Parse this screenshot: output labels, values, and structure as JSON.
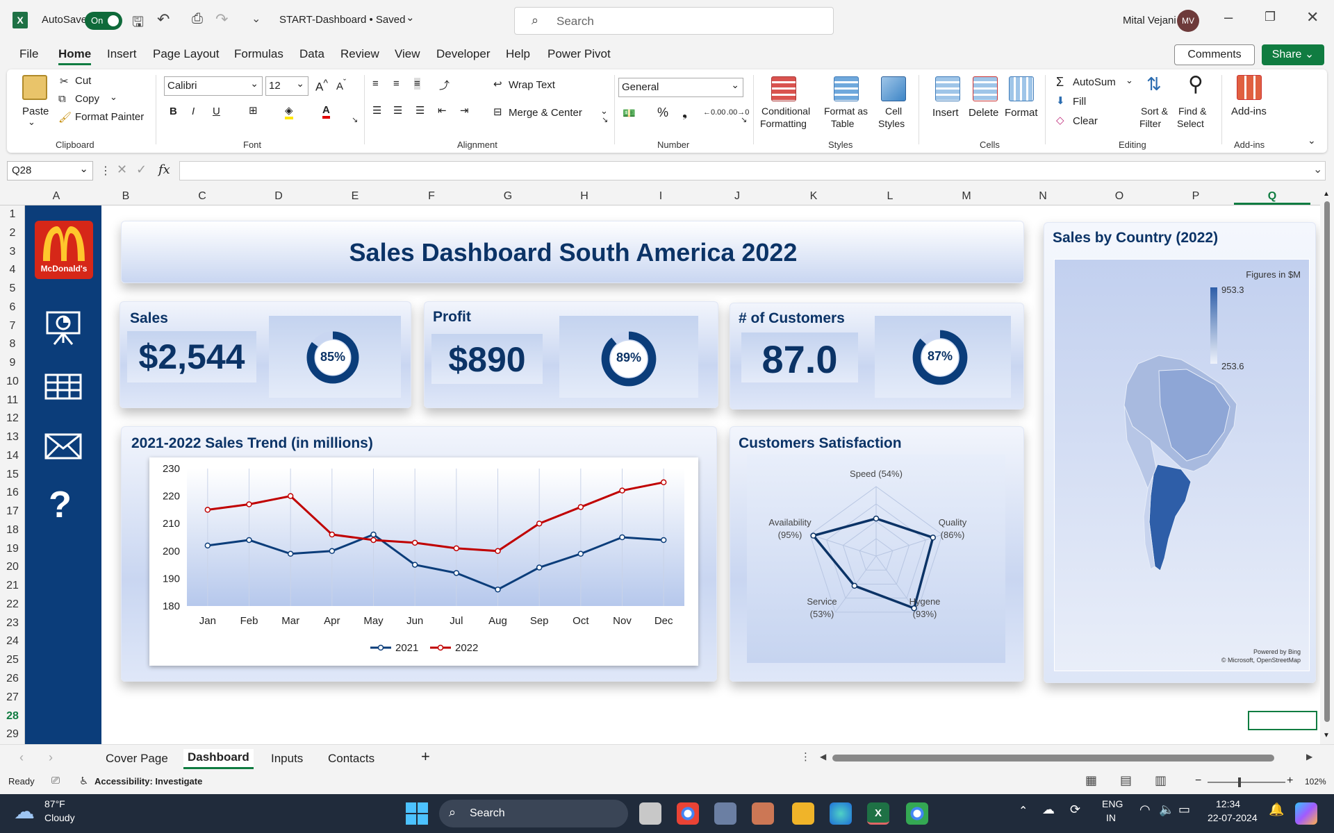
{
  "titlebar": {
    "autosave_label": "AutoSave",
    "autosave_state": "On",
    "doc_title": "START-Dashboard • Saved",
    "search_placeholder": "Search",
    "user_name": "Mital Vejani",
    "user_initials": "MV"
  },
  "menu": {
    "items": [
      "File",
      "Home",
      "Insert",
      "Page Layout",
      "Formulas",
      "Data",
      "Review",
      "View",
      "Developer",
      "Help",
      "Power Pivot"
    ],
    "active": "Home",
    "comments": "Comments",
    "share": "Share"
  },
  "ribbon": {
    "clipboard": {
      "label": "Clipboard",
      "paste": "Paste",
      "cut": "Cut",
      "copy": "Copy",
      "format_painter": "Format Painter"
    },
    "font": {
      "label": "Font",
      "family": "Calibri",
      "size": "12",
      "bold": "B",
      "italic": "I",
      "underline": "U"
    },
    "alignment": {
      "label": "Alignment",
      "wrap": "Wrap Text",
      "merge": "Merge & Center"
    },
    "number": {
      "label": "Number",
      "format": "General"
    },
    "styles": {
      "label": "Styles",
      "conditional": "Conditional",
      "conditional2": "Formatting",
      "format_table": "Format as",
      "format_table2": "Table",
      "cell_styles": "Cell",
      "cell_styles2": "Styles"
    },
    "cells": {
      "label": "Cells",
      "insert": "Insert",
      "delete": "Delete",
      "format": "Format"
    },
    "editing": {
      "label": "Editing",
      "autosum": "AutoSum",
      "fill": "Fill",
      "clear": "Clear",
      "sort": "Sort &",
      "sort2": "Filter",
      "find": "Find &",
      "find2": "Select"
    },
    "addins": {
      "label": "Add-ins",
      "addins": "Add-ins"
    }
  },
  "formula_bar": {
    "name_box": "Q28",
    "fx": "fx",
    "content": ""
  },
  "columns": [
    "A",
    "B",
    "C",
    "D",
    "E",
    "F",
    "G",
    "H",
    "I",
    "J",
    "K",
    "L",
    "M",
    "N",
    "O",
    "P",
    "Q"
  ],
  "rows": [
    "1",
    "2",
    "3",
    "4",
    "5",
    "6",
    "7",
    "8",
    "9",
    "10",
    "11",
    "12",
    "13",
    "14",
    "15",
    "16",
    "17",
    "18",
    "19",
    "20",
    "21",
    "22",
    "23",
    "24",
    "25",
    "26",
    "27",
    "28",
    "29"
  ],
  "dashboard": {
    "logo_text": "McDonald's",
    "title": "Sales Dashboard South America 2022",
    "kpis": [
      {
        "label": "Sales",
        "value": "$2,544",
        "percent": "85%",
        "fraction": 0.85
      },
      {
        "label": "Profit",
        "value": "$890",
        "percent": "89%",
        "fraction": 0.89
      },
      {
        "label": "# of Customers",
        "value": "87.0",
        "percent": "87%",
        "fraction": 0.87
      }
    ],
    "trend_title": "2021-2022 Sales Trend (in millions)",
    "satisfaction_title": "Customers Satisfaction",
    "map": {
      "title": "Sales by Country (2022)",
      "legend_title": "Figures in $M",
      "legend_max": "953.3",
      "legend_min": "253.6",
      "credit1": "Powered by Bing",
      "credit2": "© Microsoft, OpenStreetMap"
    },
    "colors": {
      "navy": "#0b3d7a",
      "red": "#c00000",
      "dark_blue": "#0b3366"
    }
  },
  "chart_data": [
    {
      "type": "line",
      "title": "2021-2022 Sales Trend (in millions)",
      "categories": [
        "Jan",
        "Feb",
        "Mar",
        "Apr",
        "May",
        "Jun",
        "Jul",
        "Aug",
        "Sep",
        "Oct",
        "Nov",
        "Dec"
      ],
      "series": [
        {
          "name": "2021",
          "color": "#0b3d7a",
          "values": [
            202,
            204,
            199,
            200,
            206,
            195,
            192,
            186,
            194,
            199,
            205,
            204
          ]
        },
        {
          "name": "2022",
          "color": "#c00000",
          "values": [
            215,
            217,
            220,
            206,
            204,
            203,
            201,
            200,
            210,
            216,
            222,
            225
          ]
        }
      ],
      "yticks": [
        "230",
        "220",
        "210",
        "200",
        "190",
        "180"
      ],
      "ylim": [
        180,
        230
      ],
      "grid": "vertical",
      "legend": "bottom"
    },
    {
      "type": "radar",
      "title": "Customers Satisfaction",
      "axes": [
        "Speed (54%)",
        "Quality (86%)",
        "Hygene (93%)",
        "Service (53%)",
        "Availability (95%)"
      ],
      "axis_names": [
        "Speed",
        "Quality",
        "Hygene",
        "Service",
        "Availability"
      ],
      "axis_pcts": [
        "(54%)",
        "(86%)",
        "(93%)",
        "(53%)",
        "(95%)"
      ],
      "values": [
        54,
        86,
        93,
        53,
        95
      ],
      "color": "#0b3366"
    }
  ],
  "tabs": {
    "items": [
      "Cover Page",
      "Dashboard",
      "Inputs",
      "Contacts"
    ],
    "active": "Dashboard",
    "add": "+"
  },
  "status": {
    "ready": "Ready",
    "accessibility": "Accessibility: Investigate",
    "zoom": "102%"
  },
  "taskbar": {
    "temp": "87°F",
    "weather": "Cloudy",
    "search": "Search",
    "lang1": "ENG",
    "lang2": "IN",
    "time": "12:34",
    "date": "22-07-2024"
  }
}
